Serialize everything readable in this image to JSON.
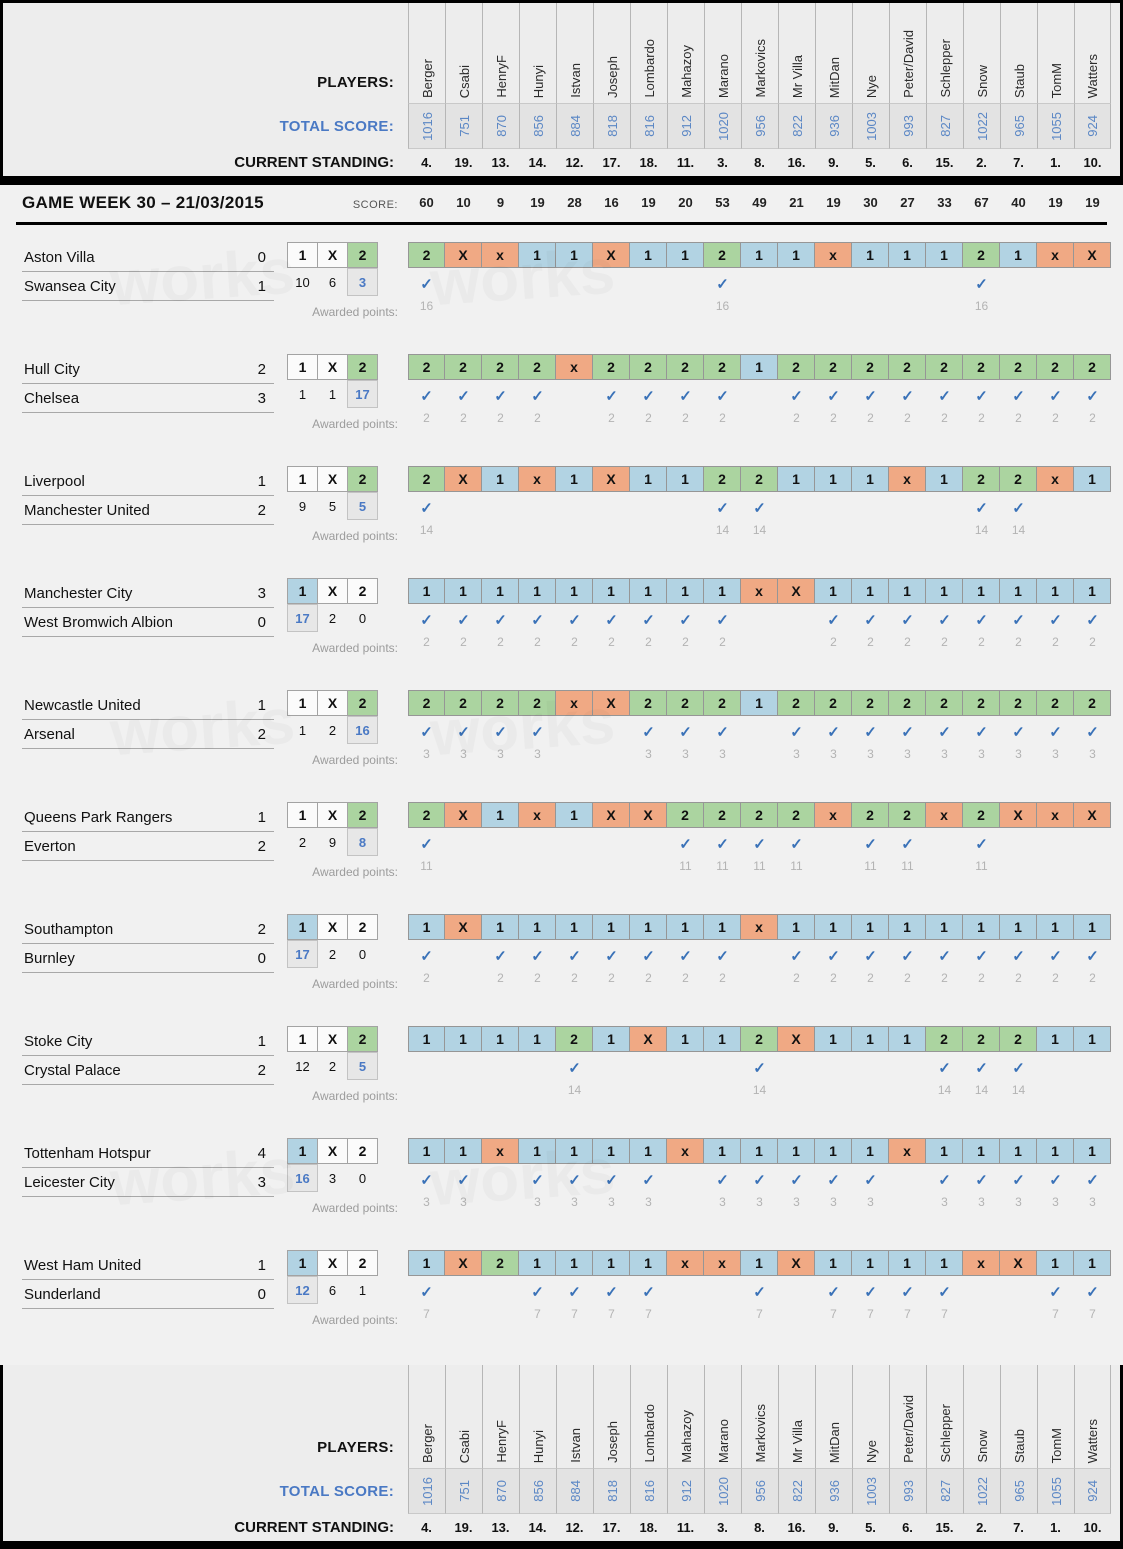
{
  "labels": {
    "players": "PLAYERS:",
    "total_score": "TOTAL SCORE:",
    "current_standing": "CURRENT STANDING:",
    "awarded_points": "Awarded points:"
  },
  "gameweek": {
    "title": "GAME WEEK 30 – 21/03/2015",
    "score_label": "SCORE:"
  },
  "icons": {
    "check": "✓"
  },
  "colors": {
    "pick_home_win": "#b2d3e3",
    "pick_draw": "#f0a984",
    "pick_away_win": "#abd4a0",
    "check": "#3a72b8",
    "highlight_text": "#4a79c4",
    "bar": "#000000"
  },
  "watermark": "works",
  "players": [
    {
      "name": "Berger",
      "total": "1016",
      "standing": "4.",
      "week_score": "60"
    },
    {
      "name": "Csabi",
      "total": "751",
      "standing": "19.",
      "week_score": "10"
    },
    {
      "name": "HenryF",
      "total": "870",
      "standing": "13.",
      "week_score": "9"
    },
    {
      "name": "Hunyi",
      "total": "856",
      "standing": "14.",
      "week_score": "19"
    },
    {
      "name": "Istvan",
      "total": "884",
      "standing": "12.",
      "week_score": "28"
    },
    {
      "name": "Joseph",
      "total": "818",
      "standing": "17.",
      "week_score": "16"
    },
    {
      "name": "Lombardo",
      "total": "816",
      "standing": "18.",
      "week_score": "19"
    },
    {
      "name": "Mahazoy",
      "total": "912",
      "standing": "11.",
      "week_score": "20"
    },
    {
      "name": "Marano",
      "total": "1020",
      "standing": "3.",
      "week_score": "53"
    },
    {
      "name": "Markovics",
      "total": "956",
      "standing": "8.",
      "week_score": "49"
    },
    {
      "name": "Mr Villa",
      "total": "822",
      "standing": "16.",
      "week_score": "21"
    },
    {
      "name": "MitDan",
      "total": "936",
      "standing": "9.",
      "week_score": "19"
    },
    {
      "name": "Nye",
      "total": "1003",
      "standing": "5.",
      "week_score": "30"
    },
    {
      "name": "Peter/David",
      "total": "993",
      "standing": "6.",
      "week_score": "27"
    },
    {
      "name": "Schlepper",
      "total": "827",
      "standing": "15.",
      "week_score": "33"
    },
    {
      "name": "Snow",
      "total": "1022",
      "standing": "2.",
      "week_score": "67"
    },
    {
      "name": "Staub",
      "total": "965",
      "standing": "7.",
      "week_score": "40"
    },
    {
      "name": "TomM",
      "total": "1055",
      "standing": "1.",
      "week_score": "19"
    },
    {
      "name": "Watters",
      "total": "924",
      "standing": "10.",
      "week_score": "19"
    }
  ],
  "matches": [
    {
      "home": "Aston Villa",
      "home_score": "0",
      "away": "Swansea City",
      "away_score": "1",
      "result": "2",
      "counts": [
        "10",
        "6",
        "3"
      ],
      "points": "16",
      "picks": [
        "2",
        "X",
        "x",
        "1",
        "1",
        "X",
        "1",
        "1",
        "2",
        "1",
        "1",
        "x",
        "1",
        "1",
        "1",
        "2",
        "1",
        "x",
        "X"
      ]
    },
    {
      "home": "Hull City",
      "home_score": "2",
      "away": "Chelsea",
      "away_score": "3",
      "result": "2",
      "counts": [
        "1",
        "1",
        "17"
      ],
      "points": "2",
      "picks": [
        "2",
        "2",
        "2",
        "2",
        "x",
        "2",
        "2",
        "2",
        "2",
        "1",
        "2",
        "2",
        "2",
        "2",
        "2",
        "2",
        "2",
        "2",
        "2"
      ]
    },
    {
      "home": "Liverpool",
      "home_score": "1",
      "away": "Manchester United",
      "away_score": "2",
      "result": "2",
      "counts": [
        "9",
        "5",
        "5"
      ],
      "points": "14",
      "picks": [
        "2",
        "X",
        "1",
        "x",
        "1",
        "X",
        "1",
        "1",
        "2",
        "2",
        "1",
        "1",
        "1",
        "x",
        "1",
        "2",
        "2",
        "x",
        "1"
      ]
    },
    {
      "home": "Manchester City",
      "home_score": "3",
      "away": "West Bromwich Albion",
      "away_score": "0",
      "result": "1",
      "counts": [
        "17",
        "2",
        "0"
      ],
      "points": "2",
      "picks": [
        "1",
        "1",
        "1",
        "1",
        "1",
        "1",
        "1",
        "1",
        "1",
        "x",
        "X",
        "1",
        "1",
        "1",
        "1",
        "1",
        "1",
        "1",
        "1"
      ]
    },
    {
      "home": "Newcastle United",
      "home_score": "1",
      "away": "Arsenal",
      "away_score": "2",
      "result": "2",
      "counts": [
        "1",
        "2",
        "16"
      ],
      "points": "3",
      "picks": [
        "2",
        "2",
        "2",
        "2",
        "x",
        "X",
        "2",
        "2",
        "2",
        "1",
        "2",
        "2",
        "2",
        "2",
        "2",
        "2",
        "2",
        "2",
        "2"
      ]
    },
    {
      "home": "Queens Park Rangers",
      "home_score": "1",
      "away": "Everton",
      "away_score": "2",
      "result": "2",
      "counts": [
        "2",
        "9",
        "8"
      ],
      "points": "11",
      "picks": [
        "2",
        "X",
        "1",
        "x",
        "1",
        "X",
        "X",
        "2",
        "2",
        "2",
        "2",
        "x",
        "2",
        "2",
        "x",
        "2",
        "X",
        "x",
        "X"
      ]
    },
    {
      "home": "Southampton",
      "home_score": "2",
      "away": "Burnley",
      "away_score": "0",
      "result": "1",
      "counts": [
        "17",
        "2",
        "0"
      ],
      "points": "2",
      "picks": [
        "1",
        "X",
        "1",
        "1",
        "1",
        "1",
        "1",
        "1",
        "1",
        "x",
        "1",
        "1",
        "1",
        "1",
        "1",
        "1",
        "1",
        "1",
        "1"
      ]
    },
    {
      "home": "Stoke City",
      "home_score": "1",
      "away": "Crystal Palace",
      "away_score": "2",
      "result": "2",
      "counts": [
        "12",
        "2",
        "5"
      ],
      "points": "14",
      "picks": [
        "1",
        "1",
        "1",
        "1",
        "2",
        "1",
        "X",
        "1",
        "1",
        "2",
        "X",
        "1",
        "1",
        "1",
        "2",
        "2",
        "2",
        "1",
        "1"
      ]
    },
    {
      "home": "Tottenham Hotspur",
      "home_score": "4",
      "away": "Leicester City",
      "away_score": "3",
      "result": "1",
      "counts": [
        "16",
        "3",
        "0"
      ],
      "points": "3",
      "picks": [
        "1",
        "1",
        "x",
        "1",
        "1",
        "1",
        "1",
        "x",
        "1",
        "1",
        "1",
        "1",
        "1",
        "x",
        "1",
        "1",
        "1",
        "1",
        "1"
      ]
    },
    {
      "home": "West Ham United",
      "home_score": "1",
      "away": "Sunderland",
      "away_score": "0",
      "result": "1",
      "counts": [
        "12",
        "6",
        "1"
      ],
      "points": "7",
      "picks": [
        "1",
        "X",
        "2",
        "1",
        "1",
        "1",
        "1",
        "x",
        "x",
        "1",
        "X",
        "1",
        "1",
        "1",
        "1",
        "x",
        "X",
        "1",
        "1"
      ]
    }
  ]
}
